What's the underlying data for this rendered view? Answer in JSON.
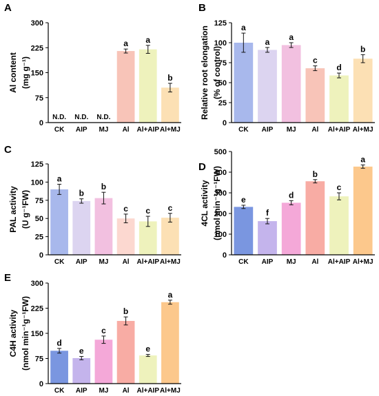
{
  "chart_data": [
    {
      "type": "bar",
      "panel": "A",
      "ylabel": "Al content",
      "ylabel_unit": "(mg g⁻¹)",
      "ylim": [
        0,
        300
      ],
      "yticks": [
        "0",
        "75",
        "150",
        "225",
        "300"
      ],
      "categories": [
        "CK",
        "AIP",
        "MJ",
        "Al",
        "Al+AIP",
        "Al+MJ"
      ],
      "values": [
        null,
        null,
        null,
        215,
        220,
        105
      ],
      "errors": [
        0,
        0,
        0,
        6,
        12,
        13
      ],
      "labels": [
        "N.D.",
        "N.D.",
        "N.D.",
        "a",
        "a",
        "b"
      ],
      "colors": [
        "#96a8e4",
        "#dcd0f0",
        "#f4b4d8",
        "#f8c4b8",
        "#eef2bc",
        "#fce0b4"
      ]
    },
    {
      "type": "bar",
      "panel": "B",
      "ylabel": "Relative root elongation",
      "ylabel_unit": "(% of control)",
      "ylim": [
        0,
        125
      ],
      "yticks": [
        "0",
        "25",
        "50",
        "75",
        "100",
        "125"
      ],
      "categories": [
        "CK",
        "AIP",
        "MJ",
        "Al",
        "Al+AIP",
        "Al+MJ"
      ],
      "values": [
        100,
        91,
        97,
        68,
        59,
        80
      ],
      "errors": [
        12,
        3,
        3,
        3,
        3,
        5
      ],
      "labels": [
        "a",
        "a",
        "a",
        "c",
        "d",
        "b"
      ],
      "colors": [
        "#a8b8ec",
        "#dcd4f0",
        "#f2c0e0",
        "#f8c4b8",
        "#eef2bc",
        "#fce0b4"
      ]
    },
    {
      "type": "bar",
      "panel": "C",
      "ylabel": "PAL activity",
      "ylabel_unit": "(U g⁻¹FW)",
      "ylim": [
        0,
        125
      ],
      "yticks": [
        "0",
        "25",
        "50",
        "75",
        "100",
        "125"
      ],
      "categories": [
        "CK",
        "AIP",
        "MJ",
        "Al",
        "Al+AIP",
        "Al+MJ"
      ],
      "values": [
        90,
        74,
        78,
        50,
        46,
        51
      ],
      "errors": [
        7,
        3,
        8,
        6,
        7,
        6
      ],
      "labels": [
        "a",
        "b",
        "b",
        "c",
        "c",
        "c"
      ],
      "colors": [
        "#a8b8ec",
        "#dcd4f0",
        "#f2c0e0",
        "#fcd8d0",
        "#eef2bc",
        "#fce0b4"
      ]
    },
    {
      "type": "bar",
      "panel": "D",
      "ylabel": "4CL activity",
      "ylabel_unit": "(nmol min⁻¹g⁻¹FW)",
      "ylim": [
        0,
        500
      ],
      "yticks": [
        "0",
        "100",
        "200",
        "300",
        "400",
        "500"
      ],
      "categories": [
        "CK",
        "AIP",
        "MJ",
        "Al",
        "Al+AIP",
        "Al+MJ"
      ],
      "values": [
        232,
        163,
        252,
        356,
        283,
        427
      ],
      "errors": [
        8,
        13,
        10,
        8,
        17,
        8
      ],
      "labels": [
        "e",
        "f",
        "d",
        "b",
        "c",
        "a"
      ],
      "colors": [
        "#7a96e0",
        "#c4b4ec",
        "#f4a8d8",
        "#f8aca4",
        "#eef2bc",
        "#fcc88c"
      ]
    },
    {
      "type": "bar",
      "panel": "E",
      "ylabel": "C4H activity",
      "ylabel_unit": "(nmol min⁻¹g⁻¹FW)",
      "ylim": [
        0,
        300
      ],
      "yticks": [
        "0",
        "75",
        "150",
        "225",
        "300"
      ],
      "categories": [
        "CK",
        "AIP",
        "MJ",
        "Al",
        "Al+AIP",
        "Al+MJ"
      ],
      "values": [
        98,
        76,
        131,
        187,
        84,
        243
      ],
      "errors": [
        7,
        5,
        11,
        12,
        3,
        6
      ],
      "labels": [
        "d",
        "e",
        "c",
        "b",
        "e",
        "a"
      ],
      "colors": [
        "#7a96e0",
        "#c4b4ec",
        "#f4a8d8",
        "#f8aca4",
        "#eef2bc",
        "#fcc88c"
      ]
    }
  ]
}
